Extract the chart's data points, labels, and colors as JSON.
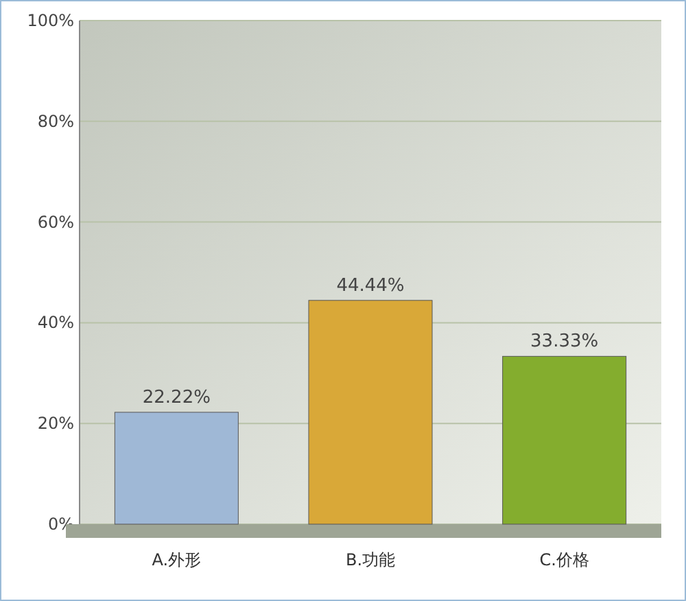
{
  "chart_data": {
    "type": "bar",
    "categories": [
      "A.外形",
      "B.功能",
      "C.价格"
    ],
    "values": [
      22.22,
      44.44,
      33.33
    ],
    "colors": [
      "#9fb8d6",
      "#d9a838",
      "#84ad2e"
    ],
    "value_labels": [
      "22.22%",
      "44.44%",
      "33.33%"
    ],
    "ylim": [
      0,
      100
    ],
    "yticks": [
      {
        "value": 0,
        "label": "0%"
      },
      {
        "value": 20,
        "label": "20%"
      },
      {
        "value": 40,
        "label": "40%"
      },
      {
        "value": 60,
        "label": "60%"
      },
      {
        "value": 80,
        "label": "80%"
      },
      {
        "value": 100,
        "label": "100%"
      }
    ],
    "grid": "y"
  }
}
